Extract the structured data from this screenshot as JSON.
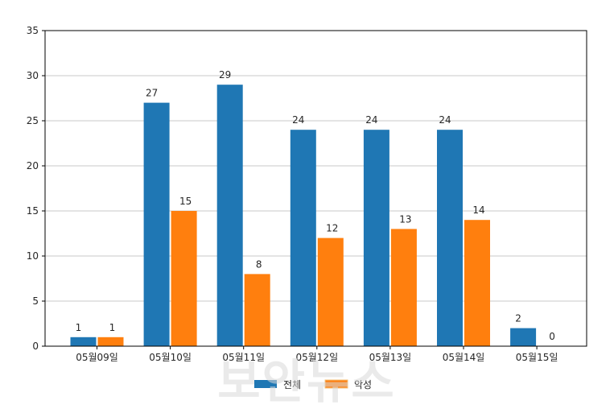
{
  "chart_data": {
    "type": "bar",
    "categories": [
      "05월09일",
      "05월10일",
      "05월11일",
      "05월12일",
      "05월13일",
      "05월14일",
      "05월15일"
    ],
    "series": [
      {
        "name": "전체",
        "color": "#1f77b4",
        "values": [
          1,
          27,
          29,
          24,
          24,
          24,
          2
        ]
      },
      {
        "name": "악성",
        "color": "#ff7f0e",
        "values": [
          1,
          15,
          8,
          12,
          13,
          14,
          0
        ]
      }
    ],
    "title": "",
    "xlabel": "",
    "ylabel": "",
    "ylim": [
      0,
      35
    ],
    "yticks": [
      0,
      5,
      10,
      15,
      20,
      25,
      30,
      35
    ],
    "grid": "horizontal",
    "legend": "bottom-center",
    "data_labels": true
  },
  "watermark": "보안뉴스"
}
